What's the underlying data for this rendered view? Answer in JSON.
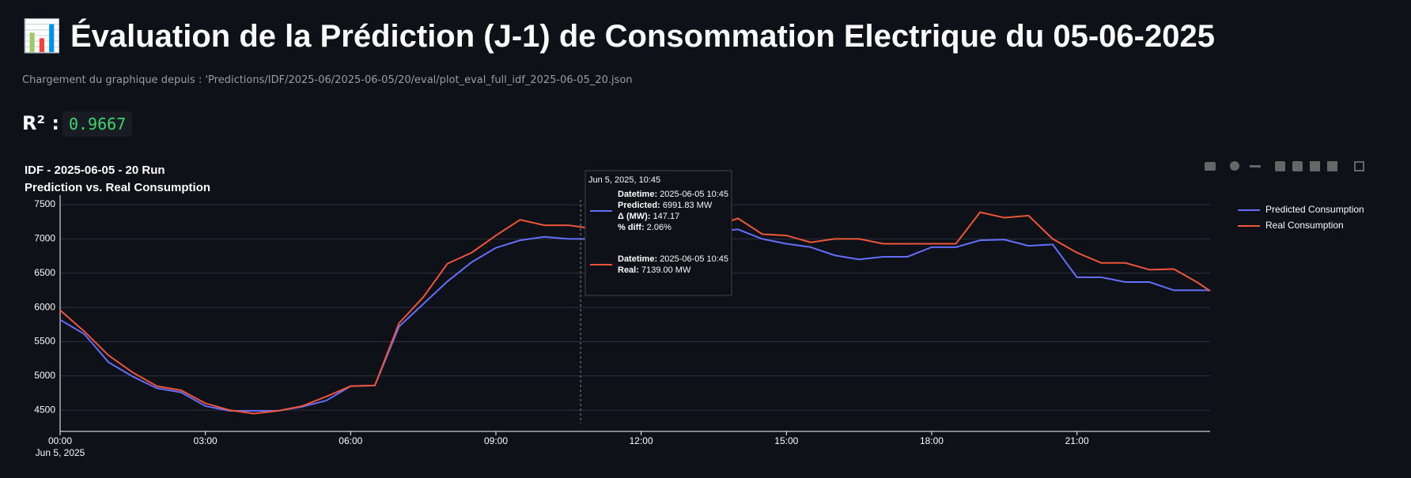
{
  "header": {
    "icon": "📊",
    "title": "Évaluation de la Prédiction (J-1) de Consommation Electrique du 05-06-2025",
    "source": "Chargement du graphique depuis : 'Predictions/IDF/2025-06/2025-06-05/20/eval/plot_eval_full_idf_2025-06-05_20.json"
  },
  "metric": {
    "label": "R² :",
    "value": "0.9667"
  },
  "chart_data": {
    "type": "line",
    "title": "IDF - 2025-06-05 - 20 Run",
    "subtitle": "Prediction vs. Real Consumption",
    "x": [
      "2025-06-05 00:00",
      "2025-06-05 00:30",
      "2025-06-05 01:00",
      "2025-06-05 01:30",
      "2025-06-05 02:00",
      "2025-06-05 02:30",
      "2025-06-05 03:00",
      "2025-06-05 03:30",
      "2025-06-05 04:00",
      "2025-06-05 04:30",
      "2025-06-05 05:00",
      "2025-06-05 05:30",
      "2025-06-05 06:00",
      "2025-06-05 06:30",
      "2025-06-05 07:00",
      "2025-06-05 07:30",
      "2025-06-05 08:00",
      "2025-06-05 08:30",
      "2025-06-05 09:00",
      "2025-06-05 09:30",
      "2025-06-05 10:00",
      "2025-06-05 10:30",
      "2025-06-05 11:00",
      "2025-06-05 11:30",
      "2025-06-05 12:00",
      "2025-06-05 12:30",
      "2025-06-05 13:00",
      "2025-06-05 13:30",
      "2025-06-05 14:00",
      "2025-06-05 14:30",
      "2025-06-05 15:00",
      "2025-06-05 15:30",
      "2025-06-05 16:00",
      "2025-06-05 16:30",
      "2025-06-05 17:00",
      "2025-06-05 17:30",
      "2025-06-05 18:00",
      "2025-06-05 18:30",
      "2025-06-05 19:00",
      "2025-06-05 19:30",
      "2025-06-05 20:00",
      "2025-06-05 20:30",
      "2025-06-05 21:00",
      "2025-06-05 21:30",
      "2025-06-05 22:00",
      "2025-06-05 22:30",
      "2025-06-05 23:00",
      "2025-06-05 23:30",
      "2025-06-05 23:45"
    ],
    "series": [
      {
        "name": "Predicted Consumption",
        "color": "#636efa",
        "values": [
          5820,
          5610,
          5200,
          4990,
          4820,
          4760,
          4560,
          4490,
          4490,
          4490,
          4550,
          4640,
          4850,
          4860,
          5720,
          6050,
          6380,
          6660,
          6870,
          6980,
          7030,
          7000,
          7000,
          7020,
          7050,
          7060,
          7080,
          7100,
          7140,
          7000,
          6930,
          6880,
          6760,
          6700,
          6740,
          6740,
          6880,
          6880,
          6980,
          6990,
          6900,
          6920,
          6440,
          6440,
          6370,
          6370,
          6250,
          6250,
          6250
        ]
      },
      {
        "name": "Real Consumption",
        "color": "#ef553b",
        "values": [
          5960,
          5650,
          5300,
          5050,
          4850,
          4790,
          4600,
          4500,
          4450,
          4490,
          4560,
          4700,
          4850,
          4860,
          5770,
          6150,
          6640,
          6800,
          7050,
          7280,
          7200,
          7200,
          7150,
          7150,
          7180,
          7200,
          7200,
          7180,
          7300,
          7070,
          7050,
          6950,
          7000,
          7000,
          6930,
          6930,
          6930,
          6930,
          7390,
          7310,
          7340,
          7000,
          6800,
          6650,
          6650,
          6550,
          6560,
          6360,
          6240
        ]
      }
    ],
    "xlim": [
      "2025-06-05 00:00",
      "2025-06-05 23:45"
    ],
    "xticks": [
      {
        "value": "2025-06-05 00:00",
        "label": "00:00"
      },
      {
        "value": "2025-06-05 03:00",
        "label": "03:00"
      },
      {
        "value": "2025-06-05 06:00",
        "label": "06:00"
      },
      {
        "value": "2025-06-05 09:00",
        "label": "09:00"
      },
      {
        "value": "2025-06-05 12:00",
        "label": "12:00"
      },
      {
        "value": "2025-06-05 15:00",
        "label": "15:00"
      },
      {
        "value": "2025-06-05 18:00",
        "label": "18:00"
      },
      {
        "value": "2025-06-05 21:00",
        "label": "21:00"
      }
    ],
    "x_date_label": "Jun 5, 2025",
    "ylim": [
      4190,
      7570
    ],
    "yticks": [
      4500,
      5000,
      5500,
      6000,
      6500,
      7000,
      7500
    ],
    "grid": true,
    "hover": {
      "x": "2025-06-05 10:45",
      "title": "Jun 5, 2025, 10:45",
      "predicted": [
        {
          "label": "Datetime:",
          "value": "2025-06-05 10:45"
        },
        {
          "label": "Predicted:",
          "value": "6991.83 MW"
        },
        {
          "label": "Δ (MW):",
          "value": "147.17"
        },
        {
          "label": "% diff:",
          "value": "2.06%"
        }
      ],
      "real": [
        {
          "label": "Datetime:",
          "value": "2025-06-05 10:45"
        },
        {
          "label": "Real:",
          "value": "7139.00 MW"
        }
      ]
    }
  }
}
